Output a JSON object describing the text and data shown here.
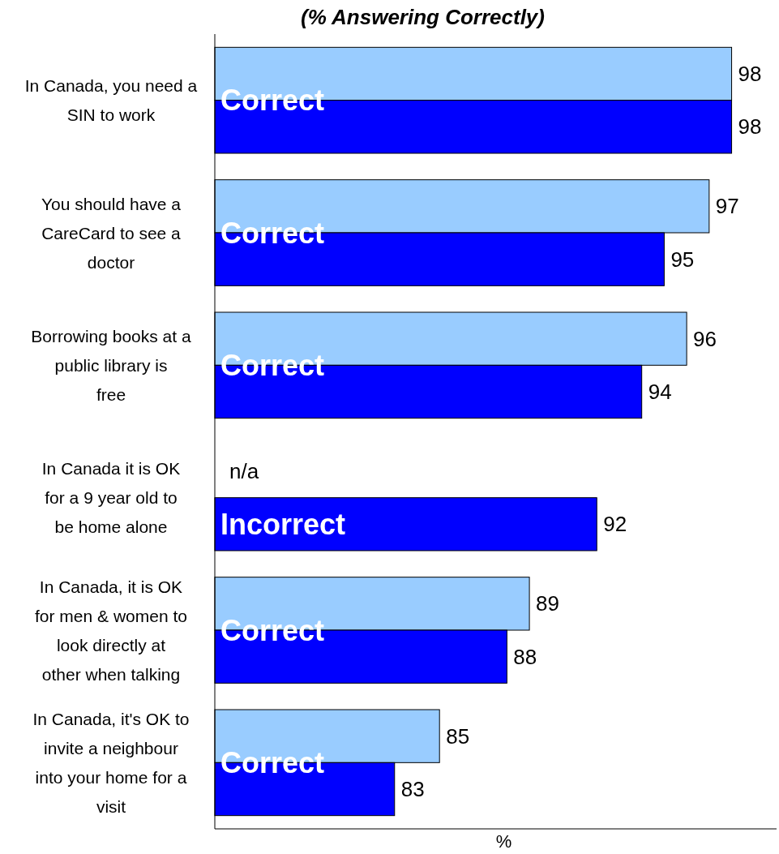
{
  "chart_data": {
    "type": "bar",
    "orientation": "horizontal",
    "title": "(% Answering Correctly)",
    "xlabel": "%",
    "categories": [
      "In Canada, you need a SIN to work",
      "You should have a CareCard to see a doctor",
      "Borrowing books at a public library is free",
      "In Canada it is OK for a 9 year old to be home alone",
      "In Canada, it is OK for men & women to look directly at other when talking",
      "In Canada, it's OK to invite a neighbour into your home for a visit"
    ],
    "series": [
      {
        "color": "#99ccff",
        "values": [
          98,
          97,
          96,
          null,
          89,
          85
        ],
        "value_labels": [
          "98",
          "97",
          "96",
          "n/a",
          "89",
          "85"
        ]
      },
      {
        "color": "#0000ff",
        "values": [
          98,
          95,
          94,
          92,
          88,
          83
        ],
        "value_labels": [
          "98",
          "95",
          "94",
          "92",
          "88",
          "83"
        ]
      }
    ],
    "xlim": [
      75,
      100
    ],
    "annotations": [
      {
        "text": "Correct",
        "y": "In Canada, you need a SIN to work"
      },
      {
        "text": "Correct",
        "y": "You should have a CareCard to see a doctor"
      },
      {
        "text": "Correct",
        "y": "Borrowing books at a public library is free"
      },
      {
        "text": "Incorrect",
        "y": "In Canada it is OK for a 9 year old to be home alone"
      },
      {
        "text": "Correct",
        "y": "In Canada, it is OK for men & women to look directly at other when talking"
      },
      {
        "text": "Correct",
        "y": "In Canada, it's OK to invite a neighbour into your home for a visit"
      }
    ]
  }
}
